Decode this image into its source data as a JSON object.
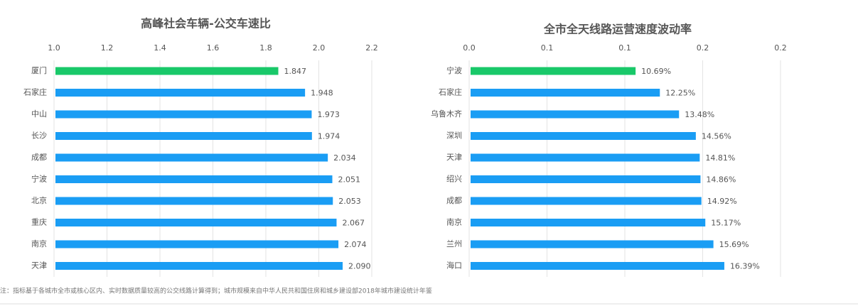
{
  "chart_data": [
    {
      "type": "bar",
      "orientation": "horizontal",
      "title": "高峰社会车辆-公交车速比",
      "categories": [
        "厦门",
        "石家庄",
        "中山",
        "长沙",
        "成都",
        "宁波",
        "北京",
        "重庆",
        "南京",
        "天津"
      ],
      "values": [
        1.847,
        1.948,
        1.973,
        1.974,
        2.034,
        2.051,
        2.053,
        2.067,
        2.074,
        2.09
      ],
      "value_labels": [
        "1.847",
        "1.948",
        "1.973",
        "1.974",
        "2.034",
        "2.051",
        "2.053",
        "2.067",
        "2.074",
        "2.090"
      ],
      "colors": [
        "#19c869",
        "#1a9df4",
        "#1a9df4",
        "#1a9df4",
        "#1a9df4",
        "#1a9df4",
        "#1a9df4",
        "#1a9df4",
        "#1a9df4",
        "#1a9df4"
      ],
      "xlim": [
        1.0,
        2.2
      ],
      "xticks": [
        {
          "value": 1.0,
          "label": "1.0"
        },
        1.2,
        1.4,
        1.6,
        1.8,
        {
          "value": 2.0,
          "label": "2.0"
        },
        2.2
      ],
      "grid": true
    },
    {
      "type": "bar",
      "orientation": "horizontal",
      "title": "全市全天线路运营速度波动率",
      "categories": [
        "宁波",
        "石家庄",
        "乌鲁木齐",
        "深圳",
        "天津",
        "绍兴",
        "成都",
        "南京",
        "兰州",
        "海口"
      ],
      "values": [
        0.1069,
        0.1225,
        0.1348,
        0.1456,
        0.1481,
        0.1486,
        0.1492,
        0.1517,
        0.1569,
        0.1639
      ],
      "value_labels": [
        "10.69%",
        "12.25%",
        "13.48%",
        "14.56%",
        "14.81%",
        "14.86%",
        "14.92%",
        "15.17%",
        "15.69%",
        "16.39%"
      ],
      "colors": [
        "#19c869",
        "#1a9df4",
        "#1a9df4",
        "#1a9df4",
        "#1a9df4",
        "#1a9df4",
        "#1a9df4",
        "#1a9df4",
        "#1a9df4",
        "#1a9df4"
      ],
      "xlim": [
        0,
        0.2
      ],
      "xticks": [
        {
          "value": 0,
          "label": "0.0"
        },
        {
          "value": 0.05,
          "label": "0.1"
        },
        {
          "value": 0.1,
          "label": "0.1"
        },
        {
          "value": 0.15,
          "label": "0.2"
        },
        {
          "value": 0.2,
          "label": "0.2"
        }
      ],
      "grid": true
    }
  ],
  "note": "注：指标基于各城市全市或核心区内、实时数据质量较高的公交线路计算得到；城市规模来自中华人民共和国住房和城乡建设部2018年城市建设统计年鉴"
}
